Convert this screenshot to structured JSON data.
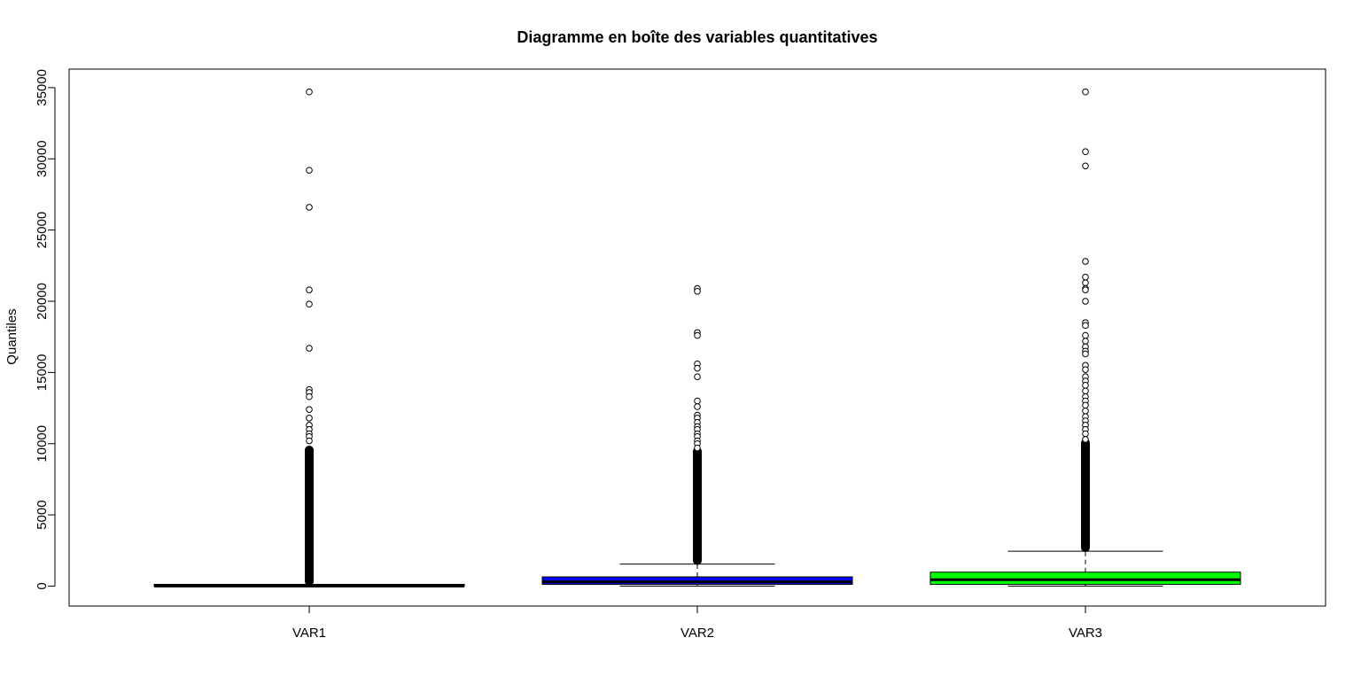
{
  "chart_data": {
    "type": "boxplot",
    "title": "Diagramme en boîte des variables quantitatives",
    "xlabel": "",
    "ylabel": "Quantiles",
    "ylim": [
      -1400,
      36300
    ],
    "yticks": [
      0,
      5000,
      10000,
      15000,
      20000,
      25000,
      30000,
      35000
    ],
    "ytick_labels": [
      "0",
      "5000",
      "10000",
      "15000",
      "20000",
      "25000",
      "30000",
      "35000"
    ],
    "categories": [
      "VAR1",
      "VAR2",
      "VAR3"
    ],
    "colors": [
      "#000000",
      "#0000ff",
      "#00ff00"
    ],
    "grid": false,
    "legend": "none",
    "boxes": [
      {
        "name": "VAR1",
        "whisker_low": 0,
        "q1": 0,
        "median": 0,
        "q3": 40,
        "whisker_high": 80,
        "outliers": [
          34700,
          29200,
          26600,
          20800,
          19800,
          16700,
          13800,
          13600,
          13300,
          12400,
          11800,
          11300,
          11000,
          10700,
          10500,
          10200
        ]
      },
      {
        "name": "VAR2",
        "whisker_low": 0,
        "q1": 120,
        "median": 300,
        "q3": 650,
        "whisker_high": 1550,
        "outliers": [
          20900,
          20700,
          17800,
          17600,
          15600,
          15300,
          14700,
          13000,
          12600,
          12000,
          11800,
          11500,
          11200,
          11000,
          10700,
          10500,
          10200,
          10000,
          9700
        ]
      },
      {
        "name": "VAR3",
        "whisker_low": 0,
        "q1": 120,
        "median": 450,
        "q3": 980,
        "whisker_high": 2450,
        "outliers": [
          34700,
          30500,
          29500,
          22800,
          21700,
          21300,
          20900,
          20800,
          20000,
          18500,
          18300,
          17600,
          17200,
          16800,
          16500,
          16300,
          15500,
          15200,
          14700,
          14400,
          14100,
          13700,
          13300,
          13000,
          12700,
          12300,
          11900,
          11600,
          11300,
          11000,
          10700,
          10300
        ]
      }
    ],
    "dense_outlier_segments": [
      {
        "box": "VAR1",
        "from": 80,
        "to": 9800
      },
      {
        "box": "VAR2",
        "from": 1550,
        "to": 9700
      },
      {
        "box": "VAR3",
        "from": 2450,
        "to": 10300
      }
    ]
  }
}
